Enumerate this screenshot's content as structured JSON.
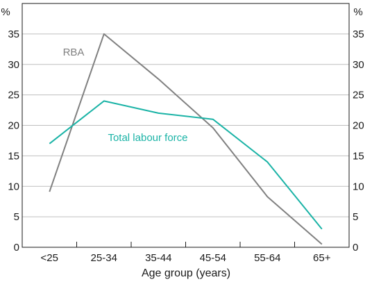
{
  "chart_data": {
    "type": "line",
    "categories": [
      "<25",
      "25-34",
      "35-44",
      "45-54",
      "55-64",
      "65+"
    ],
    "series": [
      {
        "name": "RBA",
        "values": [
          9.1,
          35.0,
          27.6,
          19.6,
          8.3,
          0.5
        ],
        "color": "#808080"
      },
      {
        "name": "Total labour force",
        "values": [
          17.0,
          24.0,
          22.0,
          21.0,
          14.0,
          3.0
        ],
        "color": "#1ab3a6"
      }
    ],
    "xlabel": "Age group (years)",
    "ylabel_left": "%",
    "ylabel_right": "%",
    "ylim": [
      0,
      40
    ],
    "yticks": [
      0,
      5,
      10,
      15,
      20,
      25,
      30,
      35
    ],
    "grid": "horizontal",
    "legend": "inline labels"
  }
}
